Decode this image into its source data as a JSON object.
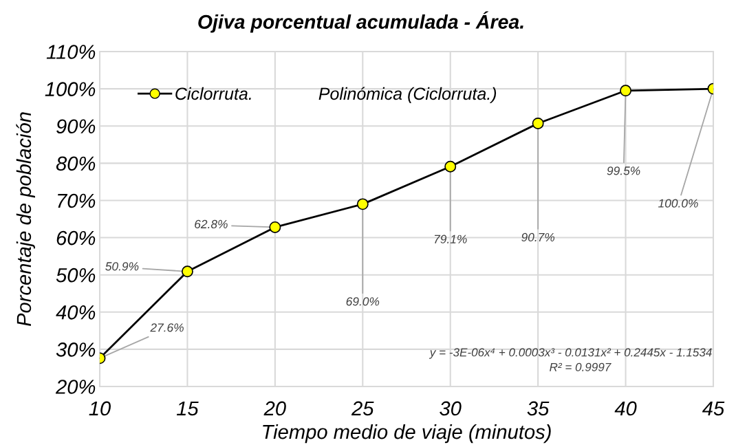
{
  "chart_data": {
    "type": "line",
    "title": "Ojiva porcentual acumulada - Área.",
    "xlabel": "Tiempo medio de viaje (minutos)",
    "ylabel": "Porcentaje de población",
    "x": [
      10,
      15,
      20,
      25,
      30,
      35,
      40,
      45
    ],
    "series": [
      {
        "name": "Ciclorruta.",
        "color": "#ffff00",
        "values": [
          27.6,
          50.9,
          62.8,
          69.0,
          79.1,
          90.7,
          99.5,
          100.0
        ],
        "value_labels": [
          "27.6%",
          "50.9%",
          "62.8%",
          "69.0%",
          "79.1%",
          "90.7%",
          "99.5%",
          "100.0%"
        ]
      }
    ],
    "xlim": [
      10,
      45
    ],
    "xticks": [
      10,
      15,
      20,
      25,
      30,
      35,
      40,
      45
    ],
    "ylim": [
      20,
      110
    ],
    "yticks": [
      {
        "value": 20,
        "label": "20%"
      },
      {
        "value": 30,
        "label": "30%"
      },
      {
        "value": 40,
        "label": "40%"
      },
      {
        "value": 50,
        "label": "50%"
      },
      {
        "value": 60,
        "label": "60%"
      },
      {
        "value": 70,
        "label": "70%"
      },
      {
        "value": 80,
        "label": "80%"
      },
      {
        "value": 90,
        "label": "90%"
      },
      {
        "value": 100,
        "label": "100%"
      },
      {
        "value": 110,
        "label": "110%"
      }
    ],
    "grid": true,
    "legend": "top left",
    "marker": "circle",
    "line_style": "solid",
    "annotations": [
      "Polinómica (Ciclorruta.)",
      "y = -3E-06x⁴ + 0.0003x³ - 0.0131x² + 0.2445x - 1.1534",
      "R² = 0.9997"
    ]
  }
}
